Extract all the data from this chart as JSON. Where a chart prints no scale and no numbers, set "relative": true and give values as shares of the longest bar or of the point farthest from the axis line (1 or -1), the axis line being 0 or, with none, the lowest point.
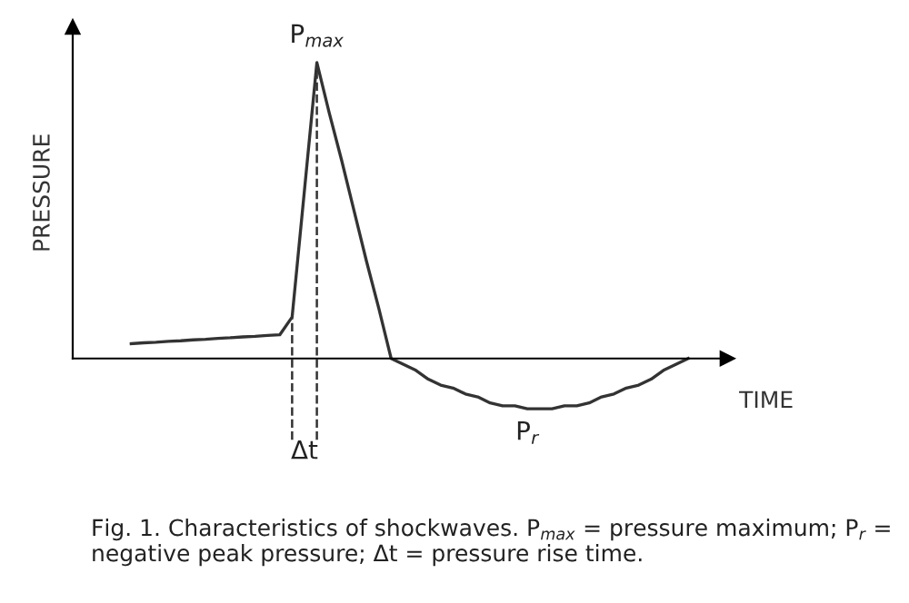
{
  "chart_data": {
    "type": "line",
    "relative": true,
    "xlabel": "TIME",
    "ylabel": "PRESSURE",
    "categories": [
      null,
      null,
      null,
      null,
      null,
      null,
      null,
      null,
      null,
      null,
      null,
      null,
      null,
      null,
      null,
      null,
      null,
      null,
      null,
      null,
      null,
      null,
      null,
      null,
      null,
      null,
      null,
      null,
      null,
      null,
      null,
      null,
      null,
      null,
      null,
      null,
      null,
      null,
      null,
      null,
      null,
      null,
      null,
      null,
      null,
      null
    ],
    "series": [
      {
        "color": "#333333",
        "values": [
          0.05,
          0.053,
          0.055,
          0.058,
          0.06,
          0.063,
          0.065,
          0.068,
          0.07,
          0.073,
          0.075,
          0.078,
          0.08,
          0.14,
          0.57,
          1,
          0.83,
          0.67,
          0.5,
          0.33,
          0.17,
          0,
          -0.02,
          -0.04,
          -0.07,
          -0.09,
          -0.1,
          -0.12,
          -0.13,
          -0.15,
          -0.16,
          -0.16,
          -0.17,
          -0.17,
          -0.17,
          -0.16,
          -0.16,
          -0.15,
          -0.13,
          -0.12,
          -0.1,
          -0.09,
          -0.07,
          -0.04,
          -0.02,
          0
        ]
      }
    ],
    "grid": false,
    "marker": "none",
    "line_style": "solid",
    "annotations": [
      "P$_{max}$",
      "P$_{r}$",
      "Δt",
      "Fig. 1. Characteristics of shockwaves. P$_{max}$ = pressure maximum; P$_{r}$ = negative peak pressure; Δt = pressure rise time."
    ]
  }
}
